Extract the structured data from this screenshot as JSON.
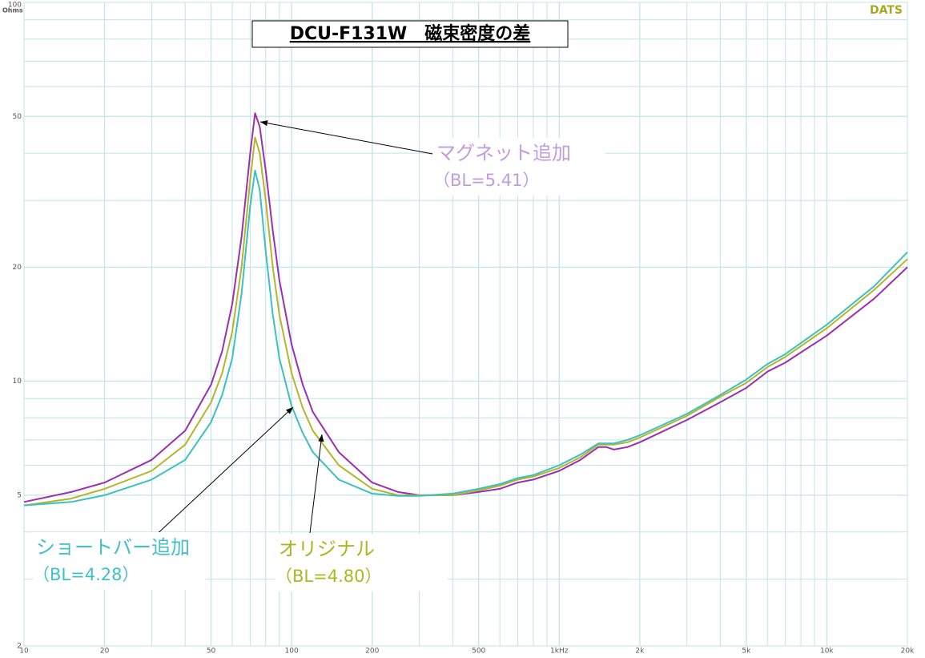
{
  "chart_data": {
    "type": "line",
    "title": "DCU-F131W　磁束密度の差",
    "y_label": "Ohms",
    "watermark": "DATS",
    "log_x": true,
    "log_y": true,
    "grid": true,
    "x": [
      10,
      15,
      20,
      30,
      40,
      50,
      55,
      60,
      65,
      70,
      73,
      76,
      80,
      85,
      90,
      100,
      110,
      120,
      150,
      200,
      250,
      300,
      400,
      500,
      600,
      700,
      800,
      1000,
      1200,
      1400,
      1500,
      1600,
      1800,
      2000,
      3000,
      4000,
      5000,
      6000,
      7000,
      10000,
      15000,
      20000
    ],
    "series": [
      {
        "name": "マグネット追加",
        "color": "#9b2fae",
        "values": [
          4.8,
          5.1,
          5.4,
          6.2,
          7.4,
          9.8,
          12,
          16,
          24,
          40,
          51,
          47,
          36,
          25,
          18.5,
          12.5,
          9.8,
          8.3,
          6.5,
          5.4,
          5.1,
          5.0,
          5.0,
          5.1,
          5.2,
          5.4,
          5.5,
          5.8,
          6.2,
          6.7,
          6.7,
          6.6,
          6.7,
          6.9,
          7.9,
          8.8,
          9.6,
          10.6,
          11.2,
          13.2,
          16.5,
          20
        ]
      },
      {
        "name": "オリジナル",
        "color": "#b5b52a",
        "values": [
          4.7,
          4.9,
          5.2,
          5.8,
          6.8,
          8.8,
          10.5,
          13.5,
          20,
          34,
          44,
          40,
          30,
          20,
          15,
          10.5,
          8.5,
          7.4,
          6.0,
          5.2,
          5.0,
          5.0,
          5.0,
          5.15,
          5.3,
          5.5,
          5.6,
          5.9,
          6.3,
          6.8,
          6.8,
          6.8,
          6.9,
          7.1,
          8.1,
          9.1,
          9.9,
          10.9,
          11.6,
          13.8,
          17.4,
          21
        ]
      },
      {
        "name": "ショートバー追加",
        "color": "#3cc0c0",
        "values": [
          4.7,
          4.8,
          5.0,
          5.5,
          6.2,
          7.8,
          9.2,
          11.5,
          17,
          29,
          36,
          32,
          22,
          15,
          11.5,
          8.6,
          7.3,
          6.5,
          5.5,
          5.05,
          4.98,
          4.98,
          5.05,
          5.2,
          5.35,
          5.55,
          5.65,
          6.0,
          6.4,
          6.85,
          6.85,
          6.85,
          7.0,
          7.2,
          8.2,
          9.2,
          10.1,
          11.1,
          11.8,
          14.1,
          17.8,
          21.9
        ]
      }
    ],
    "annotations": [
      {
        "lines": [
          "マグネット追加",
          "（BL=5.41）"
        ],
        "color": "#c39be0"
      },
      {
        "lines": [
          "ショートバー追加",
          "（BL=4.28）"
        ],
        "color": "#40c0c8"
      },
      {
        "lines": [
          "オリジナル",
          "（BL=4.80）"
        ],
        "color": "#a8b820"
      }
    ],
    "xlim": [
      10,
      20000
    ],
    "ylim": [
      2,
      100
    ],
    "xticks": [
      10,
      20,
      50,
      100,
      200,
      500,
      {
        "value": 1000,
        "label": "1kHz"
      },
      {
        "value": 2000,
        "label": "2k"
      },
      {
        "value": 5000,
        "label": "5k"
      },
      {
        "value": 10000,
        "label": "10k"
      },
      {
        "value": 20000,
        "label": "20k"
      }
    ],
    "yticks": [
      2,
      5,
      10,
      20,
      50,
      100
    ]
  }
}
